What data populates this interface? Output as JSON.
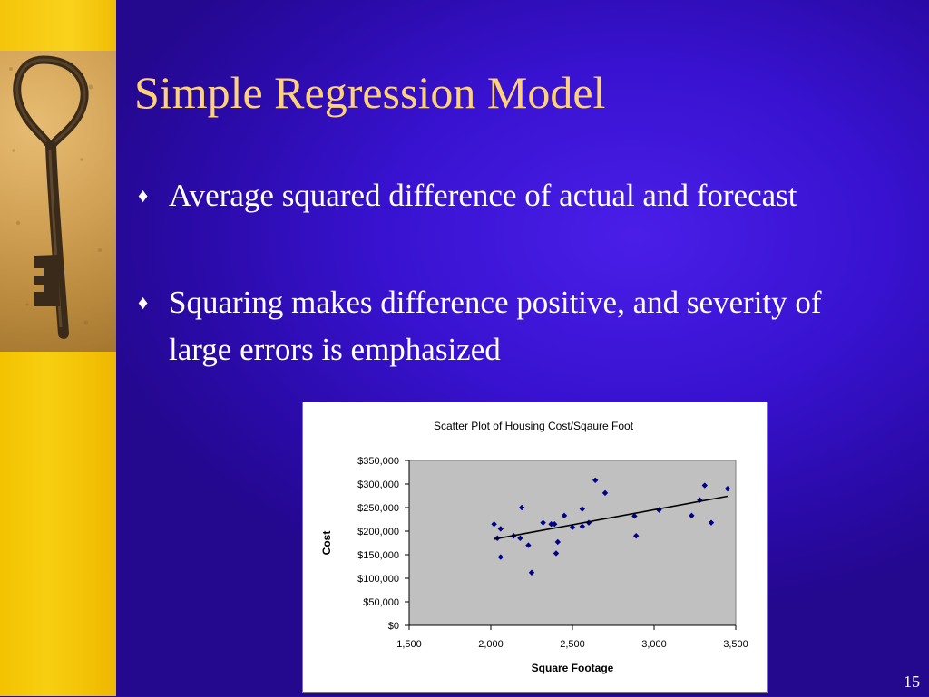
{
  "slide": {
    "title": "Simple Regression Model",
    "bullets": [
      "Average squared difference of actual and forecast",
      "Squaring makes difference positive, and severity of large errors is emphasized"
    ],
    "bullet_marker": "diamond",
    "page_number": "15",
    "colors": {
      "title": "#ffd27a",
      "background": "#3010c0",
      "accent": "#f5c400",
      "text": "#ffffff"
    }
  },
  "chart_data": {
    "type": "scatter",
    "title": "Scatter Plot of Housing Cost/Sqaure Foot",
    "xlabel": "Square Footage",
    "ylabel": "Cost",
    "xlim": [
      1500,
      3500
    ],
    "ylim": [
      0,
      350000
    ],
    "xticks": [
      "1,500",
      "2,000",
      "2,500",
      "3,000",
      "3,500"
    ],
    "yticks": [
      "$0",
      "$50,000",
      "$100,000",
      "$150,000",
      "$200,000",
      "$250,000",
      "$300,000",
      "$350,000"
    ],
    "trendline": {
      "x": [
        2020,
        3450
      ],
      "y": [
        183000,
        274000
      ]
    },
    "grid": false,
    "legend": "none",
    "points": [
      {
        "x": 2020,
        "y": 215000
      },
      {
        "x": 2040,
        "y": 185000
      },
      {
        "x": 2060,
        "y": 205000
      },
      {
        "x": 2060,
        "y": 145000
      },
      {
        "x": 2140,
        "y": 190000
      },
      {
        "x": 2180,
        "y": 185000
      },
      {
        "x": 2190,
        "y": 250000
      },
      {
        "x": 2230,
        "y": 170000
      },
      {
        "x": 2250,
        "y": 112000
      },
      {
        "x": 2320,
        "y": 218000
      },
      {
        "x": 2370,
        "y": 215000
      },
      {
        "x": 2390,
        "y": 215000
      },
      {
        "x": 2400,
        "y": 153000
      },
      {
        "x": 2410,
        "y": 177000
      },
      {
        "x": 2450,
        "y": 233000
      },
      {
        "x": 2500,
        "y": 208000
      },
      {
        "x": 2560,
        "y": 210000
      },
      {
        "x": 2560,
        "y": 247000
      },
      {
        "x": 2600,
        "y": 218000
      },
      {
        "x": 2640,
        "y": 308000
      },
      {
        "x": 2700,
        "y": 281000
      },
      {
        "x": 2880,
        "y": 232000
      },
      {
        "x": 2890,
        "y": 190000
      },
      {
        "x": 3030,
        "y": 245000
      },
      {
        "x": 3230,
        "y": 233000
      },
      {
        "x": 3280,
        "y": 266000
      },
      {
        "x": 3310,
        "y": 297000
      },
      {
        "x": 3350,
        "y": 218000
      },
      {
        "x": 3450,
        "y": 290000
      }
    ],
    "colors": {
      "points": "#00008b",
      "plot_area": "#c0c0c0",
      "trendline": "#000000"
    }
  }
}
